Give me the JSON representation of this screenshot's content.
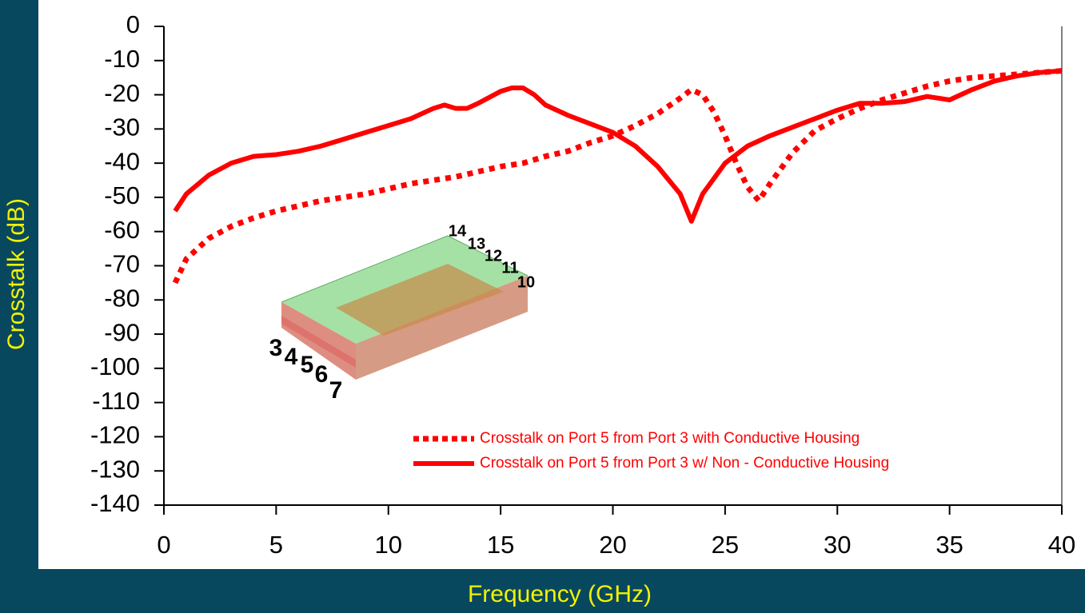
{
  "chart_data": {
    "type": "line",
    "x_label": "Frequency (GHz)",
    "y_label": "Crosstalk (dB)",
    "xlim": [
      0,
      40
    ],
    "xticks": [
      0,
      5,
      10,
      15,
      20,
      25,
      30,
      35,
      40
    ],
    "ylim": [
      -140,
      0
    ],
    "yticks": [
      0,
      -10,
      -20,
      -30,
      -40,
      -50,
      -60,
      -70,
      -80,
      -90,
      -100,
      -110,
      -120,
      -130,
      -140
    ],
    "series": [
      {
        "name": "Crosstalk on Port 5 from Port 3 with Conductive Housing",
        "color": "#ff0000",
        "style": "dotted",
        "x": [
          0.5,
          1,
          2,
          3,
          4,
          5,
          6,
          7,
          8,
          9,
          10,
          11,
          12,
          13,
          14,
          15,
          16,
          17,
          18,
          19,
          20,
          21,
          22,
          23,
          23.5,
          24,
          24.5,
          25,
          25.5,
          26,
          26.5,
          27,
          28,
          29,
          30,
          31,
          32,
          33,
          34,
          35,
          36,
          37,
          38,
          39,
          40
        ],
        "values": [
          -75,
          -68,
          -62,
          -58.5,
          -56,
          -54,
          -52.5,
          -51,
          -50,
          -49,
          -47.5,
          -46,
          -45,
          -44,
          -42.5,
          -41,
          -40,
          -38,
          -36.5,
          -34,
          -32,
          -29,
          -25.5,
          -21,
          -18.5,
          -20,
          -25,
          -32,
          -40,
          -47,
          -51,
          -46,
          -37,
          -30.5,
          -27,
          -24,
          -21.5,
          -19.5,
          -17.5,
          -16,
          -15,
          -14.5,
          -14,
          -13.5,
          -13
        ]
      },
      {
        "name": "Crosstalk on Port 5 from Port 3 w/ Non - Conductive Housing",
        "color": "#ff0000",
        "style": "solid",
        "x": [
          0.5,
          1,
          2,
          3,
          4,
          5,
          6,
          7,
          8,
          9,
          10,
          11,
          12,
          12.5,
          13,
          13.5,
          14,
          15,
          15.5,
          16,
          16.5,
          17,
          18,
          19,
          20,
          21,
          22,
          23,
          23.5,
          24,
          25,
          26,
          27,
          28,
          29,
          30,
          31,
          32,
          33,
          34,
          35,
          36,
          37,
          38,
          39,
          40
        ],
        "values": [
          -54,
          -49,
          -43.5,
          -40,
          -38,
          -37.5,
          -36.5,
          -35,
          -33,
          -31,
          -29,
          -27,
          -24,
          -23,
          -24,
          -24,
          -22.5,
          -19,
          -18,
          -18,
          -20,
          -23,
          -26,
          -28.5,
          -31,
          -35,
          -41,
          -49,
          -57,
          -49,
          -40,
          -35,
          -32,
          -29.5,
          -27,
          -24.5,
          -22.5,
          -22.5,
          -22,
          -20.5,
          -21.5,
          -18.5,
          -16,
          -14.5,
          -13.5,
          -13
        ]
      }
    ],
    "inset_labels": [
      "3",
      "4",
      "5",
      "6",
      "7",
      "14",
      "13",
      "12",
      "11",
      "10"
    ]
  }
}
